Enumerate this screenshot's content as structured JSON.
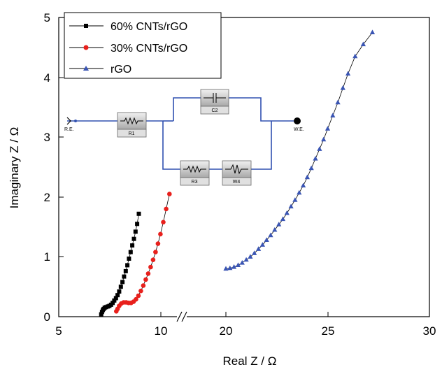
{
  "chart_data": {
    "type": "scatter",
    "xlabel": "Real Z / Ω",
    "ylabel": "Imaginary Z / Ω",
    "xlim": [
      5,
      30
    ],
    "ylim": [
      0,
      5
    ],
    "x_axis_break": [
      11,
      19
    ],
    "x_ticks": [
      "5",
      "10",
      "20",
      "25",
      "30"
    ],
    "y_ticks": [
      "0",
      "1",
      "2",
      "3",
      "4",
      "5"
    ],
    "legend_position": "top-left",
    "grid": false,
    "series": [
      {
        "name": "60% CNTs/rGO",
        "color": "#000000",
        "marker": "square",
        "x": [
          7.08,
          7.12,
          7.16,
          7.2,
          7.25,
          7.32,
          7.4,
          7.48,
          7.56,
          7.64,
          7.72,
          7.8,
          7.88,
          7.96,
          8.04,
          8.12,
          8.2,
          8.28,
          8.36,
          8.44,
          8.52,
          8.6,
          8.68,
          8.76,
          8.84,
          8.92
        ],
        "y": [
          0.04,
          0.08,
          0.11,
          0.13,
          0.15,
          0.16,
          0.17,
          0.18,
          0.2,
          0.23,
          0.27,
          0.31,
          0.36,
          0.42,
          0.5,
          0.58,
          0.67,
          0.76,
          0.86,
          0.97,
          1.08,
          1.19,
          1.3,
          1.42,
          1.55,
          1.72
        ]
      },
      {
        "name": "30% CNTs/rGO",
        "color": "#e8201c",
        "marker": "circle",
        "x": [
          7.82,
          7.88,
          7.96,
          8.06,
          8.18,
          8.3,
          8.42,
          8.54,
          8.66,
          8.78,
          8.9,
          9.02,
          9.14,
          9.26,
          9.38,
          9.5,
          9.62,
          9.74,
          9.86,
          9.98,
          10.12,
          10.26,
          10.42
        ],
        "y": [
          0.09,
          0.13,
          0.18,
          0.22,
          0.24,
          0.24,
          0.23,
          0.23,
          0.25,
          0.29,
          0.35,
          0.43,
          0.52,
          0.62,
          0.72,
          0.83,
          0.95,
          1.08,
          1.22,
          1.38,
          1.58,
          1.8,
          2.05
        ]
      },
      {
        "name": "rGO",
        "color": "#3a55b4",
        "marker": "triangle",
        "x": [
          20,
          20.2,
          20.4,
          20.6,
          20.8,
          21,
          21.2,
          21.4,
          21.6,
          21.8,
          22,
          22.2,
          22.4,
          22.6,
          22.8,
          23,
          23.2,
          23.4,
          23.6,
          23.8,
          24,
          24.2,
          24.4,
          24.6,
          24.8,
          25,
          25.25,
          25.5,
          25.75,
          26,
          26.35,
          26.75,
          27.2
        ],
        "y": [
          0.8,
          0.81,
          0.83,
          0.86,
          0.9,
          0.95,
          1.0,
          1.06,
          1.13,
          1.2,
          1.28,
          1.36,
          1.45,
          1.54,
          1.63,
          1.73,
          1.84,
          1.95,
          2.07,
          2.19,
          2.33,
          2.48,
          2.64,
          2.8,
          2.96,
          3.14,
          3.36,
          3.58,
          3.82,
          4.06,
          4.35,
          4.55,
          4.75
        ]
      }
    ],
    "inset_circuit": {
      "labels": [
        "R.E.",
        "R1",
        "C2",
        "R3",
        "W4",
        "W.E."
      ]
    }
  }
}
